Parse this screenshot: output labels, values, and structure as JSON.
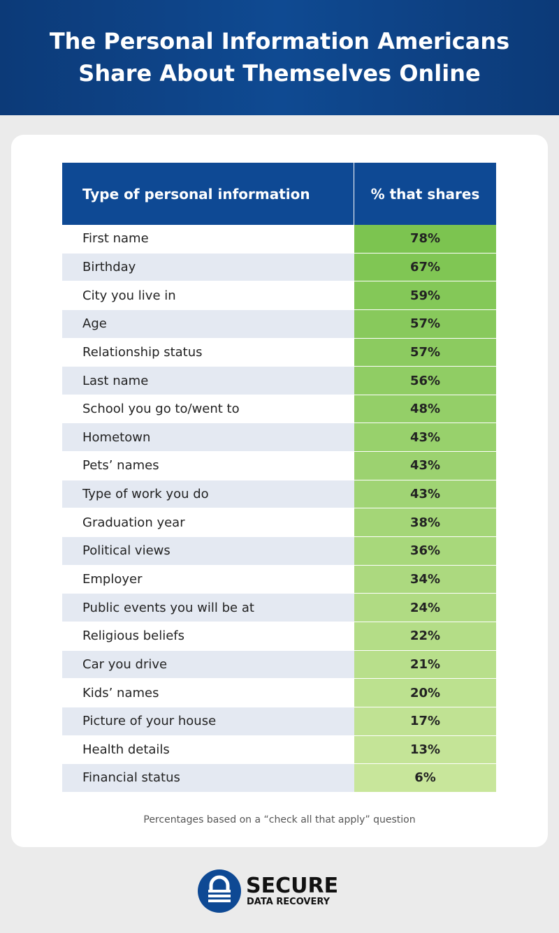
{
  "header": {
    "title_lines": [
      "The Personal Information Americans",
      "Share About Themselves Online"
    ]
  },
  "table": {
    "columns": [
      "Type of personal information",
      "% that shares"
    ],
    "rows": [
      [
        "First name",
        "78%"
      ],
      [
        "Birthday",
        "67%"
      ],
      [
        "City you live in",
        "59%"
      ],
      [
        "Age",
        "57%"
      ],
      [
        "Relationship status",
        "57%"
      ],
      [
        "Last name",
        "56%"
      ],
      [
        "School you go to/went to",
        "48%"
      ],
      [
        "Hometown",
        "43%"
      ],
      [
        "Pets’ names",
        "43%"
      ],
      [
        "Type of work you do",
        "43%"
      ],
      [
        "Graduation year",
        "38%"
      ],
      [
        "Political views",
        "36%"
      ],
      [
        "Employer",
        "34%"
      ],
      [
        "Public events you will be at",
        "24%"
      ],
      [
        "Religious beliefs",
        "22%"
      ],
      [
        "Car you drive",
        "21%"
      ],
      [
        "Kids’ names",
        "20%"
      ],
      [
        "Picture of your house",
        "17%"
      ],
      [
        "Health details",
        "13%"
      ],
      [
        "Financial status",
        "6%"
      ]
    ]
  },
  "footnote": "Percentages based on a “check all that apply” question",
  "logo": {
    "name": "SECURE",
    "subname": "DATA RECOVERY"
  }
}
